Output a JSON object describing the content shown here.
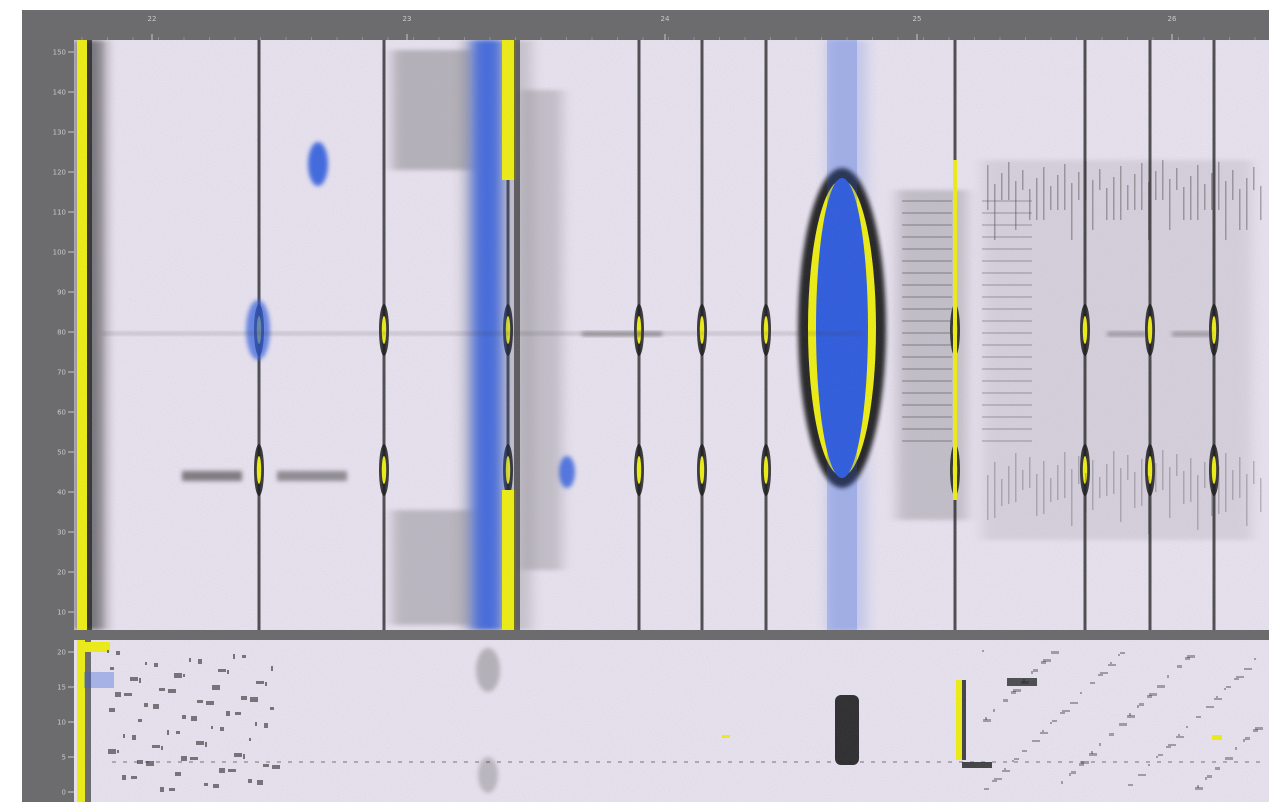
{
  "chart_data": {
    "type": "heatmap",
    "title": "",
    "xlabel": "",
    "ylabel": "",
    "grid": false,
    "legend": "none",
    "colors": {
      "frame": "#6c6c6e",
      "background": "#ece6f2",
      "low": "#ece6f2",
      "mid": "#141414",
      "high": "#f2f20c",
      "accent": "#2a5ae0"
    },
    "x_ticks": [
      "22",
      "23",
      "24",
      "25",
      "26"
    ],
    "y_ticks_top": [
      "150",
      "140",
      "130",
      "120",
      "110",
      "100",
      "90",
      "80",
      "70",
      "60",
      "50",
      "40",
      "30",
      "20",
      "10"
    ],
    "y_ticks_bottom": [
      "20",
      "15",
      "10",
      "5",
      "0"
    ]
  }
}
